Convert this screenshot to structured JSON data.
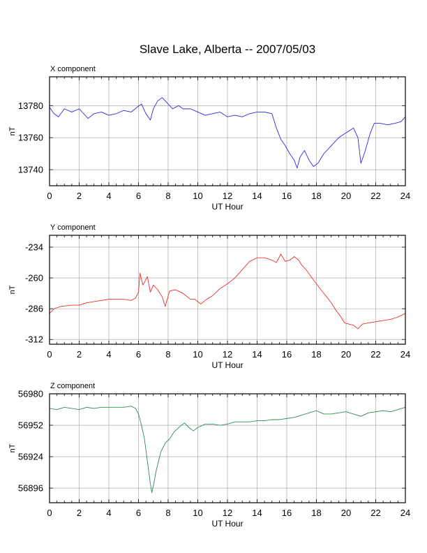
{
  "page": {
    "title": "Slave Lake, Alberta -- 2007/05/03"
  },
  "chart_data": [
    {
      "type": "line",
      "panel_title": "X component",
      "xlabel": "UT Hour",
      "ylabel": "nT",
      "xlim": [
        0,
        24
      ],
      "ylim": [
        13730,
        13798
      ],
      "xticks": [
        0,
        2,
        4,
        6,
        8,
        10,
        12,
        14,
        16,
        18,
        20,
        22,
        24
      ],
      "yticks": [
        13740,
        13760,
        13780
      ],
      "grid": true,
      "series": [
        {
          "color": "#2a2ae6",
          "x": [
            0,
            0.3,
            0.6,
            1.0,
            1.5,
            2.0,
            2.6,
            3.0,
            3.5,
            4.0,
            4.5,
            5.0,
            5.5,
            5.9,
            6.2,
            6.5,
            6.8,
            7.0,
            7.3,
            7.6,
            7.9,
            8.3,
            8.7,
            9.0,
            9.5,
            10.0,
            10.5,
            11.0,
            11.5,
            12.0,
            12.5,
            13.0,
            13.5,
            14.0,
            14.5,
            15.0,
            15.3,
            15.6,
            15.9,
            16.2,
            16.5,
            16.7,
            16.9,
            17.2,
            17.5,
            17.8,
            18.1,
            18.5,
            19.0,
            19.5,
            20.0,
            20.5,
            20.8,
            21.0,
            21.3,
            21.6,
            21.9,
            22.3,
            22.8,
            23.3,
            23.7,
            24.0
          ],
          "values": [
            13779,
            13775,
            13773,
            13778,
            13776,
            13778,
            13772,
            13775,
            13776,
            13774,
            13775,
            13777,
            13776,
            13779,
            13781,
            13775,
            13771,
            13778,
            13783,
            13785,
            13782,
            13778,
            13780,
            13778,
            13778,
            13776,
            13774,
            13775,
            13776,
            13773,
            13774,
            13773,
            13775,
            13776,
            13776,
            13775,
            13766,
            13759,
            13755,
            13750,
            13746,
            13741,
            13748,
            13752,
            13746,
            13742,
            13744,
            13750,
            13755,
            13760,
            13763,
            13766,
            13760,
            13744,
            13752,
            13762,
            13769,
            13769,
            13768,
            13769,
            13770,
            13773
          ]
        }
      ]
    },
    {
      "type": "line",
      "panel_title": "Y component",
      "xlabel": "UT Hour",
      "ylabel": "nT",
      "xlim": [
        0,
        24
      ],
      "ylim": [
        -316,
        -224
      ],
      "xticks": [
        0,
        2,
        4,
        6,
        8,
        10,
        12,
        14,
        16,
        18,
        20,
        22,
        24
      ],
      "yticks": [
        -234,
        -260,
        -286,
        -312
      ],
      "grid": true,
      "series": [
        {
          "color": "#e83030",
          "x": [
            0,
            0.3,
            0.8,
            1.5,
            2.0,
            2.5,
            3.0,
            3.5,
            4.0,
            4.5,
            5.0,
            5.5,
            5.8,
            6.0,
            6.1,
            6.3,
            6.6,
            6.8,
            7.0,
            7.3,
            7.6,
            7.8,
            8.1,
            8.5,
            9.0,
            9.5,
            9.8,
            10.2,
            10.6,
            11.0,
            11.5,
            12.0,
            12.5,
            13.0,
            13.5,
            14.0,
            14.5,
            15.0,
            15.3,
            15.6,
            15.9,
            16.2,
            16.5,
            16.8,
            17.0,
            17.3,
            17.7,
            18.0,
            18.3,
            18.7,
            19.0,
            19.3,
            19.6,
            19.9,
            20.2,
            20.5,
            20.8,
            21.1,
            21.5,
            22.0,
            22.5,
            23.0,
            23.5,
            24.0
          ],
          "values": [
            -290,
            -286,
            -284,
            -283,
            -283,
            -281,
            -280,
            -279,
            -278,
            -278,
            -278,
            -279,
            -277,
            -272,
            -256,
            -266,
            -259,
            -272,
            -266,
            -270,
            -276,
            -284,
            -271,
            -270,
            -273,
            -278,
            -278,
            -282,
            -278,
            -275,
            -269,
            -265,
            -260,
            -253,
            -246,
            -243,
            -243,
            -245,
            -247,
            -240,
            -246,
            -245,
            -242,
            -245,
            -249,
            -253,
            -260,
            -265,
            -270,
            -276,
            -281,
            -287,
            -292,
            -298,
            -299,
            -300,
            -303,
            -299,
            -298,
            -297,
            -296,
            -295,
            -293,
            -290
          ]
        }
      ]
    },
    {
      "type": "line",
      "panel_title": "Z component",
      "xlabel": "UT Hour",
      "ylabel": "nT",
      "xlim": [
        0,
        24
      ],
      "ylim": [
        56883,
        56980
      ],
      "xticks": [
        0,
        2,
        4,
        6,
        8,
        10,
        12,
        14,
        16,
        18,
        20,
        22,
        24
      ],
      "yticks": [
        56980,
        56952,
        56924,
        56896
      ],
      "grid": true,
      "series": [
        {
          "color": "#2e8b57",
          "x": [
            0,
            0.5,
            1.0,
            1.5,
            2.0,
            2.5,
            3.0,
            3.5,
            4.0,
            4.5,
            5.0,
            5.5,
            5.8,
            6.0,
            6.2,
            6.4,
            6.6,
            6.8,
            6.9,
            7.0,
            7.2,
            7.5,
            7.8,
            8.1,
            8.4,
            8.8,
            9.1,
            9.4,
            9.7,
            10.0,
            10.5,
            11.0,
            11.5,
            12.0,
            12.5,
            13.0,
            13.5,
            14.0,
            14.5,
            15.0,
            15.5,
            16.0,
            16.5,
            17.0,
            17.5,
            18.0,
            18.5,
            19.0,
            19.5,
            20.0,
            20.5,
            21.0,
            21.5,
            22.0,
            22.5,
            23.0,
            23.5,
            24.0
          ],
          "values": [
            56967,
            56966,
            56968,
            56967,
            56966,
            56968,
            56967,
            56968,
            56968,
            56968,
            56968,
            56969,
            56967,
            56962,
            56952,
            56940,
            56920,
            56900,
            56892,
            56898,
            56912,
            56928,
            56936,
            56940,
            56946,
            56951,
            56954,
            56950,
            56947,
            56950,
            56953,
            56953,
            56952,
            56953,
            56955,
            56955,
            56955,
            56956,
            56956,
            56957,
            56957,
            56958,
            56959,
            56961,
            56963,
            56965,
            56962,
            56962,
            56963,
            56964,
            56962,
            56960,
            56963,
            56964,
            56965,
            56964,
            56966,
            56968
          ]
        }
      ]
    }
  ]
}
